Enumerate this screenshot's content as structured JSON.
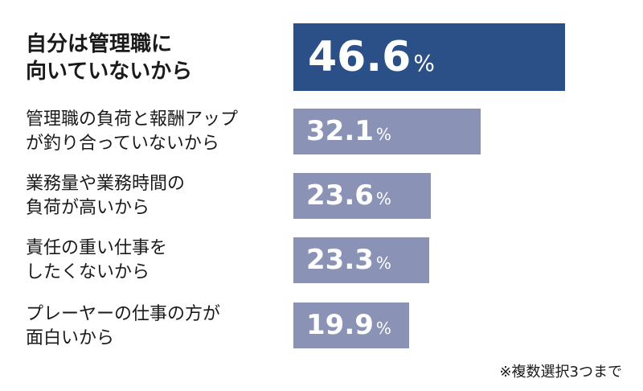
{
  "chart_data": {
    "type": "bar",
    "orientation": "horizontal",
    "categories": [
      "自分は管理職に\n向いていないから",
      "管理職の負荷と報酬アップ\nが釣り合っていないから",
      "業務量や業務時間の\n負荷が高いから",
      "責任の重い仕事を\nしたくないから",
      "プレーヤーの仕事の方が\n面白いから"
    ],
    "values": [
      46.6,
      32.1,
      23.6,
      23.3,
      19.9
    ],
    "value_labels": [
      "46.6",
      "32.1",
      "23.6",
      "23.3",
      "19.9"
    ],
    "unit": "%",
    "highlight_index": 0,
    "xlim": [
      0,
      46.6
    ],
    "grid": false,
    "legend": "none"
  },
  "colors": {
    "highlight_bar": "#2b4f87",
    "bar": "#8a93b6",
    "value_text": "#ffffff"
  },
  "footnote": "※複数選択3つまで"
}
